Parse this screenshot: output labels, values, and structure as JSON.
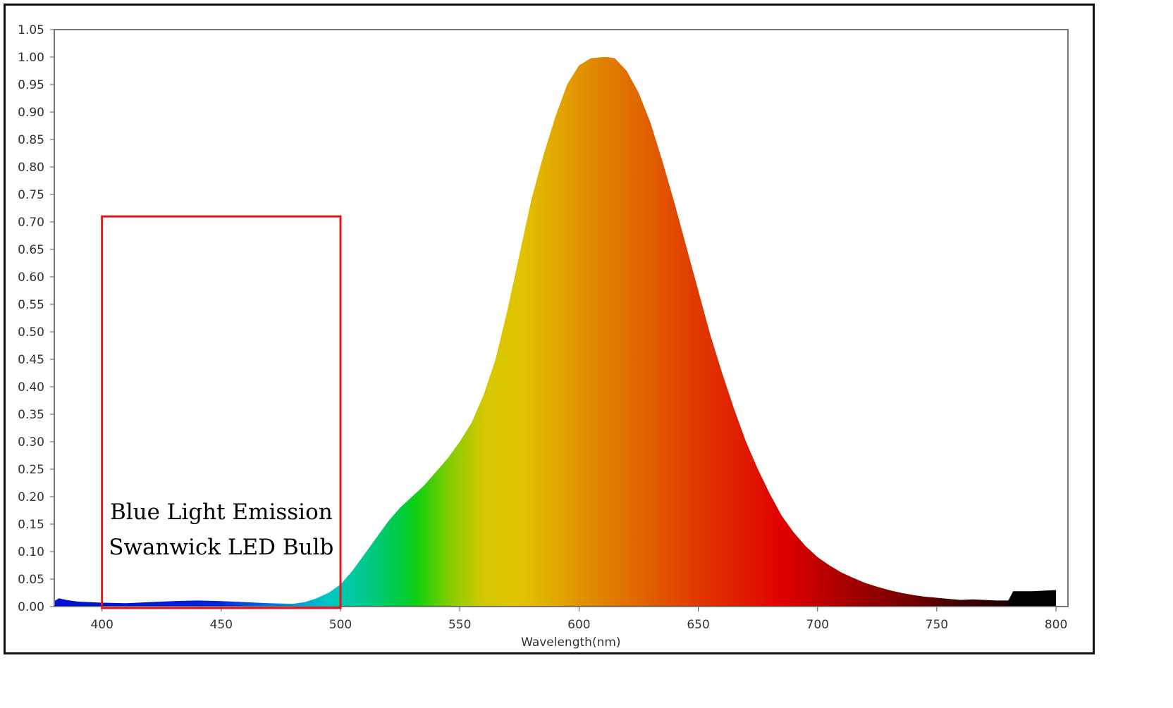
{
  "chart_data": {
    "type": "area",
    "title": "",
    "xlabel": "Wavelength(nm)",
    "ylabel": "",
    "xlim": [
      380,
      805
    ],
    "ylim": [
      0,
      1.05
    ],
    "x_ticks": [
      400,
      450,
      500,
      550,
      600,
      650,
      700,
      750,
      800
    ],
    "x_tick_labels": [
      "400",
      "450",
      "500",
      "550",
      "600",
      "650",
      "700",
      "750",
      "800"
    ],
    "y_ticks": [
      0,
      0.05,
      0.1,
      0.15,
      0.2,
      0.25,
      0.3,
      0.35,
      0.4,
      0.45,
      0.5,
      0.55,
      0.6,
      0.65,
      0.7,
      0.75,
      0.8,
      0.85,
      0.9,
      0.95,
      1.0,
      1.05
    ],
    "y_tick_labels": [
      "0.00",
      "0.05",
      "0.10",
      "0.15",
      "0.20",
      "0.25",
      "0.30",
      "0.35",
      "0.40",
      "0.45",
      "0.50",
      "0.55",
      "0.60",
      "0.65",
      "0.70",
      "0.75",
      "0.80",
      "0.85",
      "0.90",
      "0.95",
      "1.00",
      "1.05"
    ],
    "grid": false,
    "fill": "spectral-gradient",
    "series": [
      {
        "x": [
          380,
          382,
          385,
          390,
          395,
          400,
          410,
          420,
          430,
          440,
          450,
          460,
          470,
          480,
          485,
          490,
          495,
          500,
          505,
          510,
          515,
          520,
          525,
          530,
          535,
          540,
          545,
          550,
          555,
          560,
          565,
          570,
          575,
          580,
          585,
          590,
          595,
          600,
          605,
          610,
          612,
          615,
          620,
          625,
          630,
          635,
          640,
          645,
          650,
          655,
          660,
          665,
          670,
          675,
          680,
          685,
          690,
          695,
          700,
          705,
          710,
          715,
          720,
          725,
          730,
          735,
          740,
          745,
          750,
          755,
          760,
          765,
          770,
          775,
          780,
          782,
          790,
          800
        ],
        "y": [
          0.01,
          0.015,
          0.012,
          0.009,
          0.008,
          0.007,
          0.006,
          0.008,
          0.01,
          0.011,
          0.01,
          0.008,
          0.006,
          0.005,
          0.008,
          0.015,
          0.025,
          0.04,
          0.065,
          0.095,
          0.125,
          0.155,
          0.18,
          0.2,
          0.22,
          0.245,
          0.27,
          0.3,
          0.335,
          0.385,
          0.45,
          0.54,
          0.64,
          0.74,
          0.82,
          0.89,
          0.95,
          0.985,
          0.998,
          1.0,
          1.0,
          0.998,
          0.975,
          0.935,
          0.88,
          0.81,
          0.735,
          0.655,
          0.575,
          0.495,
          0.425,
          0.36,
          0.3,
          0.25,
          0.205,
          0.165,
          0.135,
          0.11,
          0.09,
          0.075,
          0.062,
          0.052,
          0.043,
          0.036,
          0.03,
          0.025,
          0.021,
          0.018,
          0.016,
          0.014,
          0.012,
          0.013,
          0.012,
          0.011,
          0.011,
          0.028,
          0.028,
          0.03
        ]
      }
    ],
    "annotation": {
      "lines": [
        "Blue Light Emission",
        "Swanwick LED Bulb"
      ],
      "box_x_range": [
        400,
        500
      ],
      "box_y_range": [
        0,
        0.71
      ],
      "box_color": "#e8141b"
    },
    "colors": {
      "axis": "#777777",
      "tick": "#555555"
    }
  }
}
